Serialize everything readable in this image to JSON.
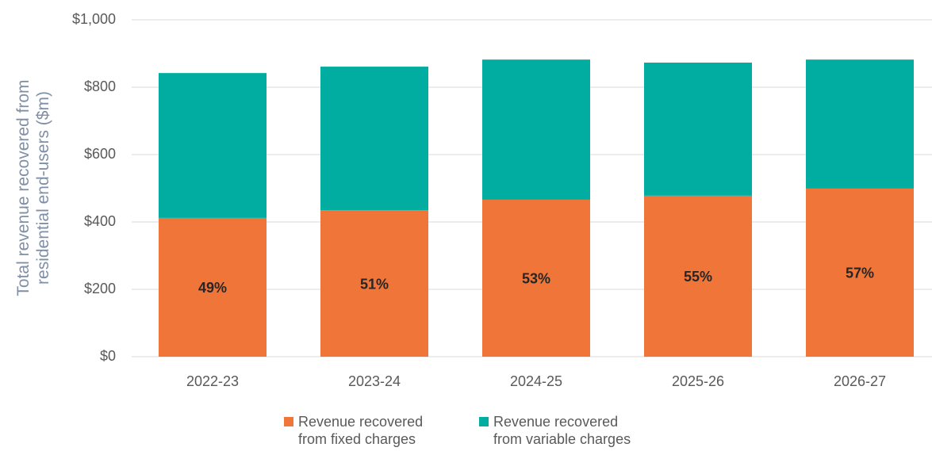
{
  "chart_data": {
    "type": "stacked_bar",
    "ylabel": "Total revenue recovered from\nresidential end-users ($m)",
    "categories": [
      "2022-23",
      "2023-24",
      "2024-25",
      "2025-26",
      "2026-27"
    ],
    "series": [
      {
        "name": "Revenue recovered\nfrom fixed charges",
        "color": "#f07539",
        "values": [
          412,
          435,
          466,
          478,
          499
        ],
        "labels": [
          "49%",
          "51%",
          "53%",
          "55%",
          "57%"
        ]
      },
      {
        "name": "Revenue recovered\nfrom variable charges",
        "color": "#00ada0",
        "values": [
          430,
          426,
          416,
          395,
          383
        ]
      }
    ],
    "ylim": [
      0,
      1000
    ],
    "yticks": [
      {
        "value": 0,
        "label": "$0"
      },
      {
        "value": 200,
        "label": "$200"
      },
      {
        "value": 400,
        "label": "$400"
      },
      {
        "value": 600,
        "label": "$600"
      },
      {
        "value": 800,
        "label": "$800"
      },
      {
        "value": 1000,
        "label": "$1,000"
      }
    ],
    "grid": true,
    "legend": "bottom"
  }
}
